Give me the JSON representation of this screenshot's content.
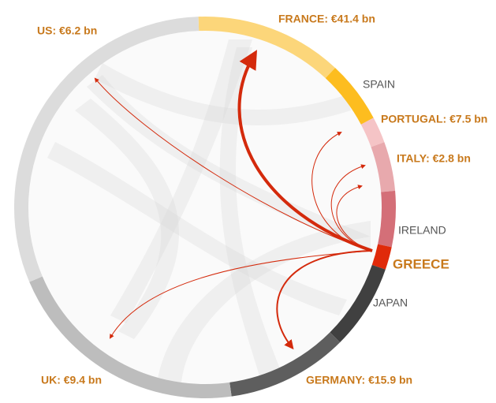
{
  "nodes": [
    {
      "label": "FRANCE: €41.4 bn"
    },
    {
      "label": "SPAIN"
    },
    {
      "label": "PORTUGAL: €7.5 bn"
    },
    {
      "label": "ITALY: €2.8 bn"
    },
    {
      "label": "IRELAND"
    },
    {
      "label": "GREECE"
    },
    {
      "label": "JAPAN"
    },
    {
      "label": "GERMANY: €15.9 bn"
    },
    {
      "label": "UK: €9.4 bn"
    },
    {
      "label": "US: €6.2 bn"
    }
  ]
}
